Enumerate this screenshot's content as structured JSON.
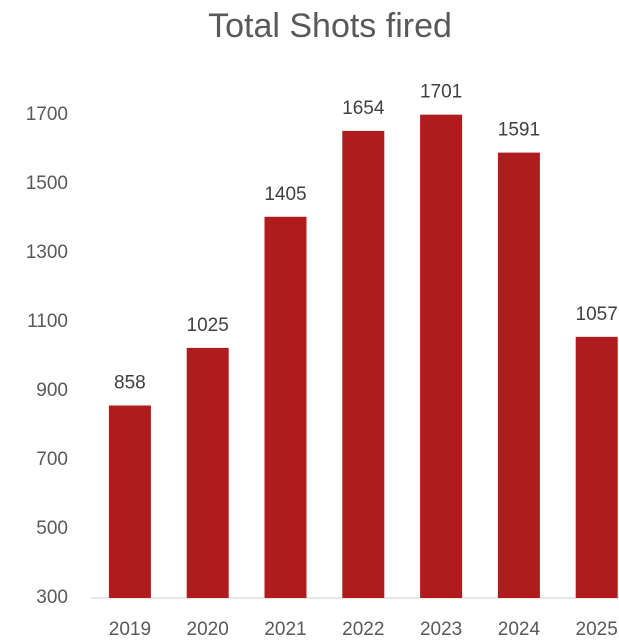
{
  "chart_data": {
    "type": "bar",
    "title": "Total Shots fired",
    "categories": [
      "2019",
      "2020",
      "2021",
      "2022",
      "2023",
      "2024",
      "2025"
    ],
    "values": [
      858,
      1025,
      1405,
      1654,
      1701,
      1591,
      1057
    ],
    "color": "#b01c1e",
    "ylim": [
      300,
      1800
    ],
    "yticks": [
      300,
      500,
      700,
      900,
      1100,
      1300,
      1500,
      1700
    ],
    "grid": false
  }
}
